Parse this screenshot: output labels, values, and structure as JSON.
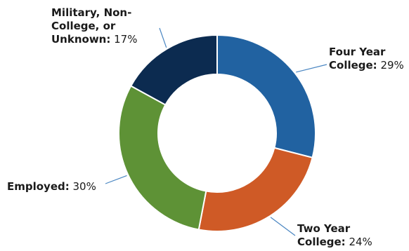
{
  "chart_data": {
    "type": "pie",
    "donut": true,
    "title": "",
    "start_angle_deg": 0,
    "direction": "clockwise",
    "slices": [
      {
        "label": "Four Year College",
        "label_lines": [
          "Four Year",
          "College"
        ],
        "value": 29,
        "value_text": "29%",
        "color": "#2162a1"
      },
      {
        "label": "Two Year College",
        "label_lines": [
          "Two Year",
          "College"
        ],
        "value": 24,
        "value_text": "24%",
        "color": "#cf5a26"
      },
      {
        "label": "Employed",
        "label_lines": [
          "Employed"
        ],
        "value": 30,
        "value_text": "30%",
        "color": "#5e9236"
      },
      {
        "label": "Military, Non-College, or Unknown",
        "label_lines": [
          "Military, Non-",
          "College, or",
          "Unknown"
        ],
        "value": 17,
        "value_text": "17%",
        "color": "#0c2b50"
      }
    ],
    "legend": "none",
    "leader_line_color": "#4a86c2"
  }
}
